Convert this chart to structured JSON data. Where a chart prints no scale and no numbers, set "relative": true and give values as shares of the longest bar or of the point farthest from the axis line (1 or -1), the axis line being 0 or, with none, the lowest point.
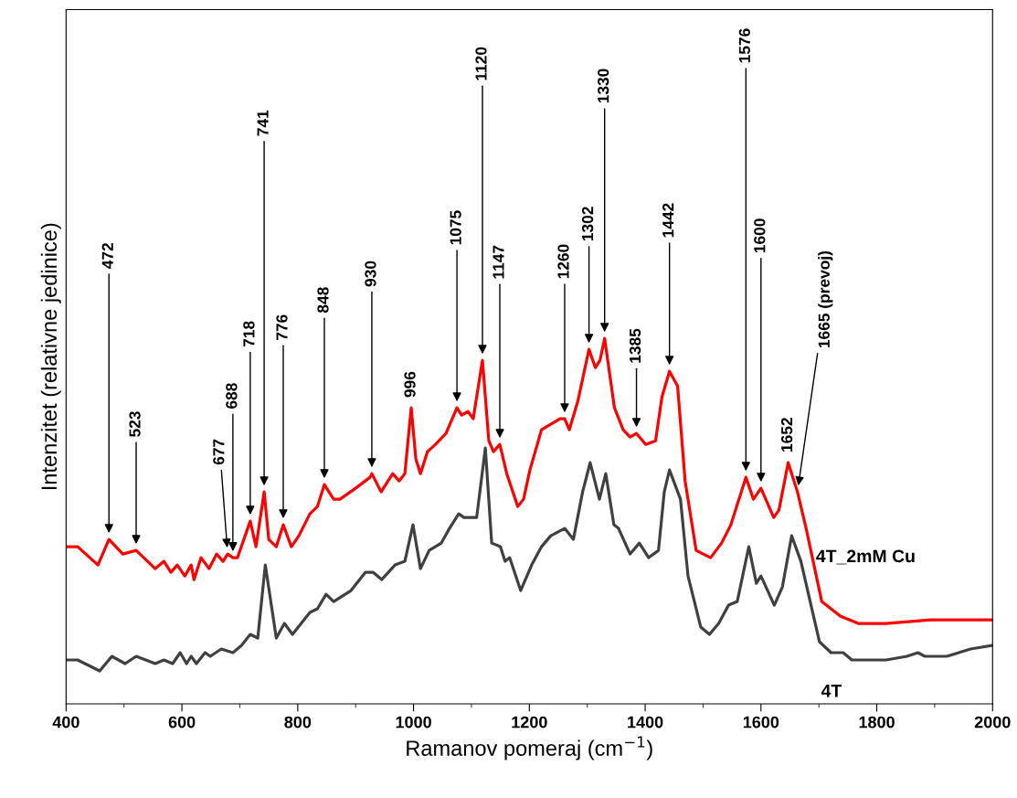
{
  "chart_data": {
    "type": "line",
    "relative": true,
    "xlabel": "Ramanov pomeraj (cm$^{−1}$)",
    "ylabel": "Intenzitet (relativne jedinice)",
    "xlim": [
      400,
      2000
    ],
    "xticks": [
      400,
      600,
      800,
      1000,
      1200,
      1400,
      1600,
      1800,
      2000
    ],
    "grid": false,
    "legend": false,
    "marker": "none",
    "line_style": "solid",
    "series": [
      {
        "name": "4T_2mM Cu",
        "color": "#ff0000",
        "x": [
          400,
          420,
          455,
          474,
          498,
          521,
          554,
          569,
          581,
          592,
          605,
          616,
          621,
          633,
          647,
          660,
          671,
          679,
          688,
          696,
          718,
          728,
          742,
          750,
          763,
          775,
          789,
          802,
          821,
          834,
          846,
          862,
          873,
          900,
          925,
          928,
          944,
          964,
          975,
          985,
          996,
          1004,
          1012,
          1024,
          1038,
          1056,
          1075,
          1083,
          1094,
          1103,
          1119,
          1130,
          1138,
          1149,
          1161,
          1180,
          1190,
          1201,
          1221,
          1253,
          1261,
          1269,
          1284,
          1303,
          1314,
          1322,
          1330,
          1347,
          1362,
          1374,
          1385,
          1401,
          1418,
          1429,
          1442,
          1456,
          1469,
          1488,
          1513,
          1532,
          1548,
          1574,
          1587,
          1600,
          1622,
          1631,
          1647,
          1663,
          1678,
          1705,
          1737,
          1768,
          1816,
          1894,
          2000
        ],
        "values": [
          0.43,
          0.43,
          0.38,
          0.45,
          0.41,
          0.42,
          0.37,
          0.39,
          0.36,
          0.38,
          0.35,
          0.38,
          0.34,
          0.4,
          0.37,
          0.41,
          0.39,
          0.41,
          0.4,
          0.4,
          0.5,
          0.43,
          0.58,
          0.45,
          0.43,
          0.49,
          0.43,
          0.46,
          0.52,
          0.54,
          0.6,
          0.56,
          0.56,
          0.59,
          0.62,
          0.63,
          0.58,
          0.63,
          0.61,
          0.63,
          0.81,
          0.67,
          0.63,
          0.69,
          0.71,
          0.74,
          0.81,
          0.79,
          0.8,
          0.78,
          0.94,
          0.72,
          0.69,
          0.71,
          0.63,
          0.54,
          0.56,
          0.64,
          0.75,
          0.78,
          0.78,
          0.75,
          0.83,
          0.97,
          0.92,
          0.94,
          1.0,
          0.81,
          0.75,
          0.73,
          0.74,
          0.71,
          0.72,
          0.84,
          0.91,
          0.87,
          0.61,
          0.42,
          0.4,
          0.44,
          0.49,
          0.62,
          0.56,
          0.59,
          0.51,
          0.53,
          0.66,
          0.58,
          0.48,
          0.28,
          0.24,
          0.22,
          0.22,
          0.23,
          0.23
        ]
      },
      {
        "name": "4T",
        "color": "#404040",
        "x": [
          400,
          420,
          458,
          479,
          502,
          521,
          554,
          569,
          584,
          597,
          608,
          616,
          625,
          640,
          649,
          668,
          688,
          703,
          718,
          731,
          744,
          763,
          777,
          791,
          821,
          834,
          849,
          862,
          892,
          917,
          930,
          945,
          968,
          985,
          999,
          1012,
          1027,
          1048,
          1062,
          1078,
          1087,
          1109,
          1124,
          1135,
          1150,
          1158,
          1166,
          1185,
          1204,
          1221,
          1237,
          1261,
          1276,
          1292,
          1305,
          1321,
          1332,
          1346,
          1354,
          1374,
          1390,
          1406,
          1423,
          1433,
          1442,
          1461,
          1474,
          1496,
          1511,
          1527,
          1544,
          1559,
          1579,
          1592,
          1600,
          1623,
          1637,
          1653,
          1669,
          1701,
          1721,
          1742,
          1757,
          1816,
          1852,
          1871,
          1883,
          1921,
          1962,
          2000
        ],
        "values": [
          0.12,
          0.12,
          0.09,
          0.13,
          0.11,
          0.13,
          0.11,
          0.12,
          0.11,
          0.14,
          0.11,
          0.13,
          0.11,
          0.14,
          0.13,
          0.15,
          0.14,
          0.16,
          0.19,
          0.18,
          0.38,
          0.18,
          0.22,
          0.19,
          0.25,
          0.26,
          0.3,
          0.28,
          0.31,
          0.36,
          0.36,
          0.34,
          0.38,
          0.39,
          0.49,
          0.37,
          0.42,
          0.44,
          0.48,
          0.52,
          0.51,
          0.51,
          0.7,
          0.44,
          0.43,
          0.39,
          0.4,
          0.31,
          0.38,
          0.43,
          0.46,
          0.48,
          0.45,
          0.58,
          0.66,
          0.56,
          0.63,
          0.49,
          0.48,
          0.41,
          0.44,
          0.4,
          0.42,
          0.58,
          0.64,
          0.56,
          0.35,
          0.21,
          0.19,
          0.22,
          0.27,
          0.28,
          0.43,
          0.33,
          0.35,
          0.27,
          0.32,
          0.46,
          0.39,
          0.17,
          0.14,
          0.14,
          0.12,
          0.12,
          0.13,
          0.14,
          0.13,
          0.13,
          0.15,
          0.16
        ]
      }
    ],
    "annotations": [
      {
        "text": "472",
        "x": 474,
        "y": 0.45
      },
      {
        "text": "523",
        "x": 521,
        "y": 0.42
      },
      {
        "text": "677",
        "x": 679,
        "y": 0.41
      },
      {
        "text": "688",
        "x": 688,
        "y": 0.4
      },
      {
        "text": "718",
        "x": 718,
        "y": 0.5
      },
      {
        "text": "741",
        "x": 742,
        "y": 0.58
      },
      {
        "text": "776",
        "x": 775,
        "y": 0.49
      },
      {
        "text": "848",
        "x": 846,
        "y": 0.6
      },
      {
        "text": "930",
        "x": 928,
        "y": 0.63
      },
      {
        "text": "996",
        "x": 996,
        "y": 0.81
      },
      {
        "text": "1075",
        "x": 1075,
        "y": 0.81
      },
      {
        "text": "1120",
        "x": 1119,
        "y": 0.94
      },
      {
        "text": "1147",
        "x": 1149,
        "y": 0.71
      },
      {
        "text": "1260",
        "x": 1261,
        "y": 0.78
      },
      {
        "text": "1302",
        "x": 1303,
        "y": 0.97
      },
      {
        "text": "1330",
        "x": 1330,
        "y": 1.0
      },
      {
        "text": "1385",
        "x": 1385,
        "y": 0.74
      },
      {
        "text": "1442",
        "x": 1442,
        "y": 0.91
      },
      {
        "text": "1576",
        "x": 1574,
        "y": 0.62
      },
      {
        "text": "1600",
        "x": 1600,
        "y": 0.59
      },
      {
        "text": "1652",
        "x": 1647,
        "y": 0.66
      },
      {
        "text": "1665 (prevoj)",
        "x": 1663,
        "y": 0.58
      }
    ]
  }
}
